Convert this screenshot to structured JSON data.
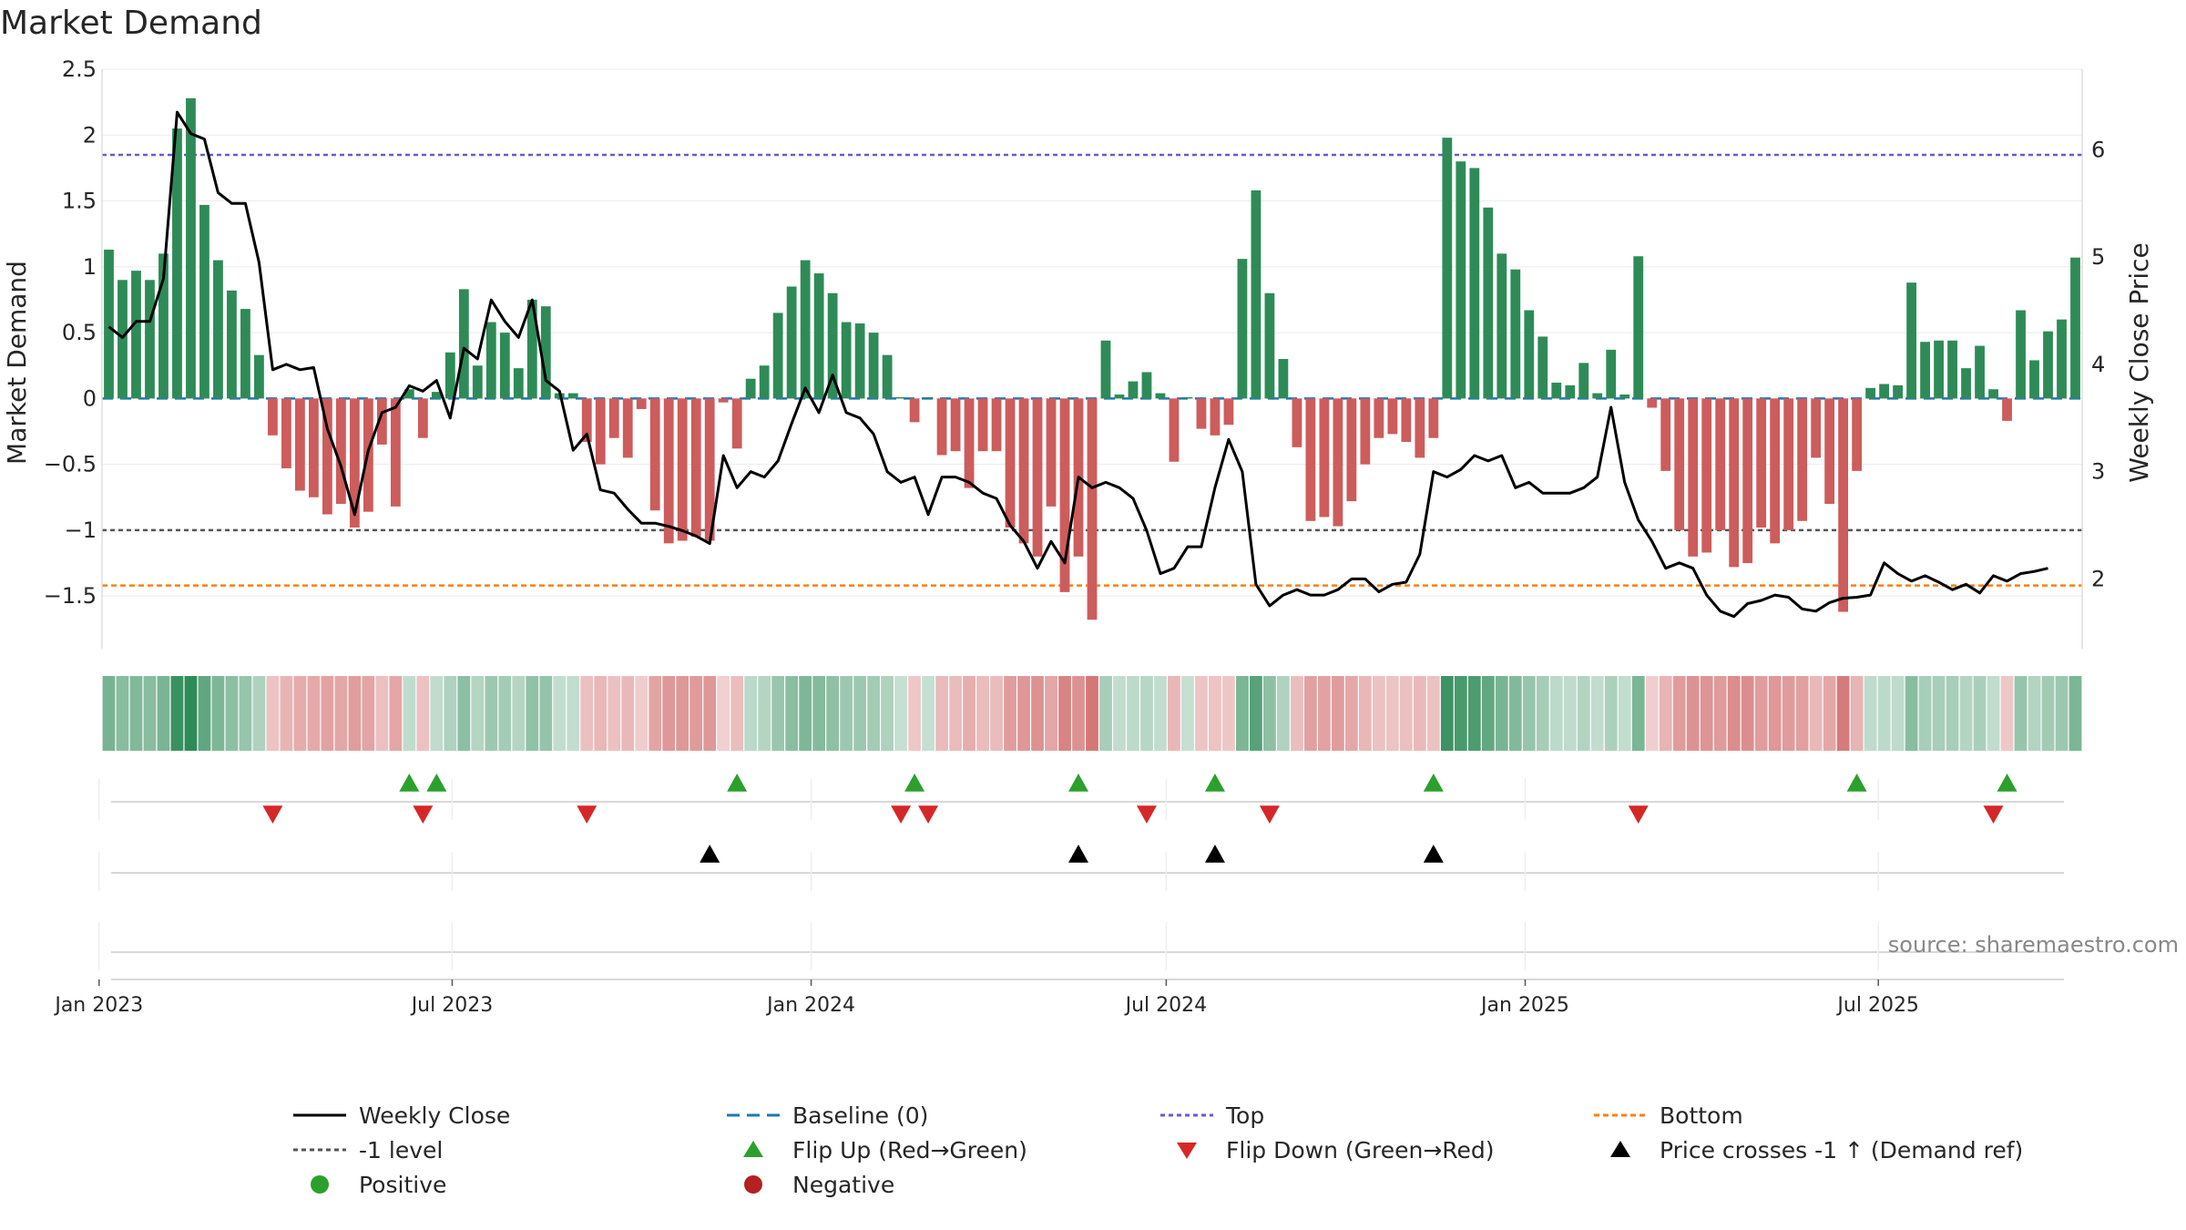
{
  "chart_data": {
    "type": "bar",
    "title": "Market Demand",
    "ylabel": "Market Demand",
    "y2label": "Weekly Close Price",
    "ylim": [
      -1.9,
      2.5
    ],
    "y2lim": [
      1.35,
      6.75
    ],
    "yticks": [
      2.5,
      2,
      1.5,
      1,
      0.5,
      0,
      -0.5,
      -1,
      -1.5
    ],
    "ytick_labels": [
      "2.5",
      "2",
      "1.5",
      "1",
      "0.5",
      "0",
      "−0.5",
      "−1",
      "−1.5"
    ],
    "y2ticks": [
      6,
      5,
      4,
      3,
      2
    ],
    "y2tick_labels": [
      "6",
      "5",
      "4",
      "3",
      "2"
    ],
    "x_start": "2023-01-06",
    "x_end": "2025-09-19",
    "xticks": [
      "2023-01-01",
      "2023-07-01",
      "2024-01-01",
      "2024-07-01",
      "2025-01-01",
      "2025-07-01"
    ],
    "xtick_labels": [
      "Jan 2023",
      "Jul 2023",
      "Jan 2024",
      "Jul 2024",
      "Jan 2025",
      "Jul 2025"
    ],
    "reference_lines": {
      "top": 1.85,
      "minus_one": -1.0,
      "bottom": -1.42,
      "baseline": 0
    },
    "demand": [
      1.13,
      0.9,
      0.97,
      0.9,
      1.1,
      2.05,
      2.28,
      1.47,
      1.05,
      0.82,
      0.68,
      0.33,
      -0.28,
      -0.53,
      -0.7,
      -0.75,
      -0.88,
      -0.8,
      -0.98,
      -0.86,
      -0.35,
      -0.82,
      0.07,
      -0.3,
      0.05,
      0.35,
      0.83,
      0.25,
      0.58,
      0.5,
      0.23,
      0.75,
      0.7,
      0.04,
      0.04,
      -0.33,
      -0.5,
      -0.3,
      -0.45,
      -0.08,
      -0.85,
      -1.1,
      -1.08,
      -1.05,
      -1.08,
      -0.03,
      -0.38,
      0.15,
      0.25,
      0.65,
      0.85,
      1.05,
      0.95,
      0.8,
      0.58,
      0.57,
      0.5,
      0.33,
      0.01,
      -0.18,
      0.01,
      -0.43,
      -0.4,
      -0.68,
      -0.4,
      -0.4,
      -0.98,
      -1.1,
      -1.2,
      -0.82,
      -1.47,
      -1.2,
      -1.68,
      0.44,
      0.03,
      0.13,
      0.2,
      0.04,
      -0.48,
      0.01,
      -0.23,
      -0.28,
      -0.2,
      1.06,
      1.58,
      0.8,
      0.3,
      -0.37,
      -0.93,
      -0.9,
      -0.97,
      -0.78,
      -0.5,
      -0.3,
      -0.27,
      -0.33,
      -0.45,
      -0.3,
      1.98,
      1.8,
      1.75,
      1.45,
      1.1,
      0.98,
      0.67,
      0.47,
      0.12,
      0.1,
      0.27,
      0.04,
      0.37,
      0.03,
      1.08,
      -0.07,
      -0.55,
      -1.0,
      -1.2,
      -1.17,
      -1.0,
      -1.28,
      -1.25,
      -0.98,
      -1.1,
      -1.0,
      -0.93,
      -0.45,
      -0.8,
      -1.62,
      -0.55,
      0.08,
      0.11,
      0.1,
      0.88,
      0.43,
      0.44,
      0.44,
      0.23,
      0.4,
      0.07,
      -0.17,
      0.67,
      0.29,
      0.51,
      0.6,
      1.07
    ],
    "close": [
      4.35,
      4.25,
      4.4,
      4.4,
      4.8,
      6.35,
      6.15,
      6.1,
      5.6,
      5.5,
      5.5,
      4.95,
      3.95,
      4.0,
      3.95,
      3.97,
      3.4,
      3.05,
      2.6,
      3.2,
      3.55,
      3.6,
      3.8,
      3.75,
      3.85,
      3.5,
      4.15,
      4.05,
      4.6,
      4.4,
      4.25,
      4.6,
      3.85,
      3.75,
      3.2,
      3.35,
      2.83,
      2.8,
      2.65,
      2.52,
      2.52,
      2.49,
      2.45,
      2.4,
      2.33,
      3.15,
      2.85,
      3.0,
      2.95,
      3.1,
      3.45,
      3.78,
      3.55,
      3.9,
      3.55,
      3.5,
      3.35,
      3.0,
      2.9,
      2.95,
      2.6,
      2.95,
      2.95,
      2.9,
      2.8,
      2.75,
      2.5,
      2.35,
      2.1,
      2.35,
      2.15,
      2.95,
      2.85,
      2.9,
      2.85,
      2.75,
      2.45,
      2.05,
      2.1,
      2.3,
      2.3,
      2.85,
      3.3,
      3.0,
      1.95,
      1.75,
      1.85,
      1.9,
      1.85,
      1.85,
      1.9,
      2.0,
      2.0,
      1.88,
      1.95,
      1.97,
      2.23,
      3.0,
      2.95,
      3.02,
      3.15,
      3.1,
      3.15,
      2.85,
      2.9,
      2.8,
      2.8,
      2.8,
      2.85,
      2.95,
      3.6,
      2.9,
      2.55,
      2.35,
      2.1,
      2.15,
      2.1,
      1.85,
      1.7,
      1.65,
      1.77,
      1.8,
      1.85,
      1.83,
      1.72,
      1.7,
      1.78,
      1.82,
      1.83,
      1.85,
      2.15,
      2.05,
      1.98,
      2.03,
      1.97,
      1.9,
      1.95,
      1.87,
      2.03,
      1.98,
      2.05,
      2.07,
      2.1
    ],
    "flip_up_indices": [
      22,
      24,
      46,
      59,
      71,
      81,
      97,
      128,
      139
    ],
    "flip_down_indices": [
      12,
      23,
      35,
      58,
      60,
      76,
      85,
      112,
      138
    ],
    "price_cross_indices": [
      44,
      71,
      81,
      97
    ],
    "colors": {
      "positive_bar": "#2e8b57",
      "negative_bar": "#cd5c5c",
      "close_line": "#000000",
      "baseline": "#1f77b4",
      "top": "#6a5acd",
      "bottom": "#ff7f0e",
      "minus_one": "#555555",
      "flip_up": "#2ca02c",
      "flip_down": "#d62728",
      "cross": "#000000",
      "positive_dot": "#2ca02c",
      "negative_dot": "#b22222"
    },
    "legend": [
      {
        "label": "Weekly Close",
        "kind": "line"
      },
      {
        "label": "Baseline (0)",
        "kind": "baseline"
      },
      {
        "label": "Top",
        "kind": "top"
      },
      {
        "label": "Bottom",
        "kind": "bottom"
      },
      {
        "label": "-1 level",
        "kind": "minus_one"
      },
      {
        "label": "Flip Up (Red→Green)",
        "kind": "flip_up"
      },
      {
        "label": "Flip Down (Green→Red)",
        "kind": "flip_down"
      },
      {
        "label": "Price crosses -1 ↑ (Demand ref)",
        "kind": "cross"
      },
      {
        "label": "Positive",
        "kind": "pos_dot"
      },
      {
        "label": "Negative",
        "kind": "neg_dot"
      }
    ],
    "source": "source: sharemaestro.com"
  }
}
